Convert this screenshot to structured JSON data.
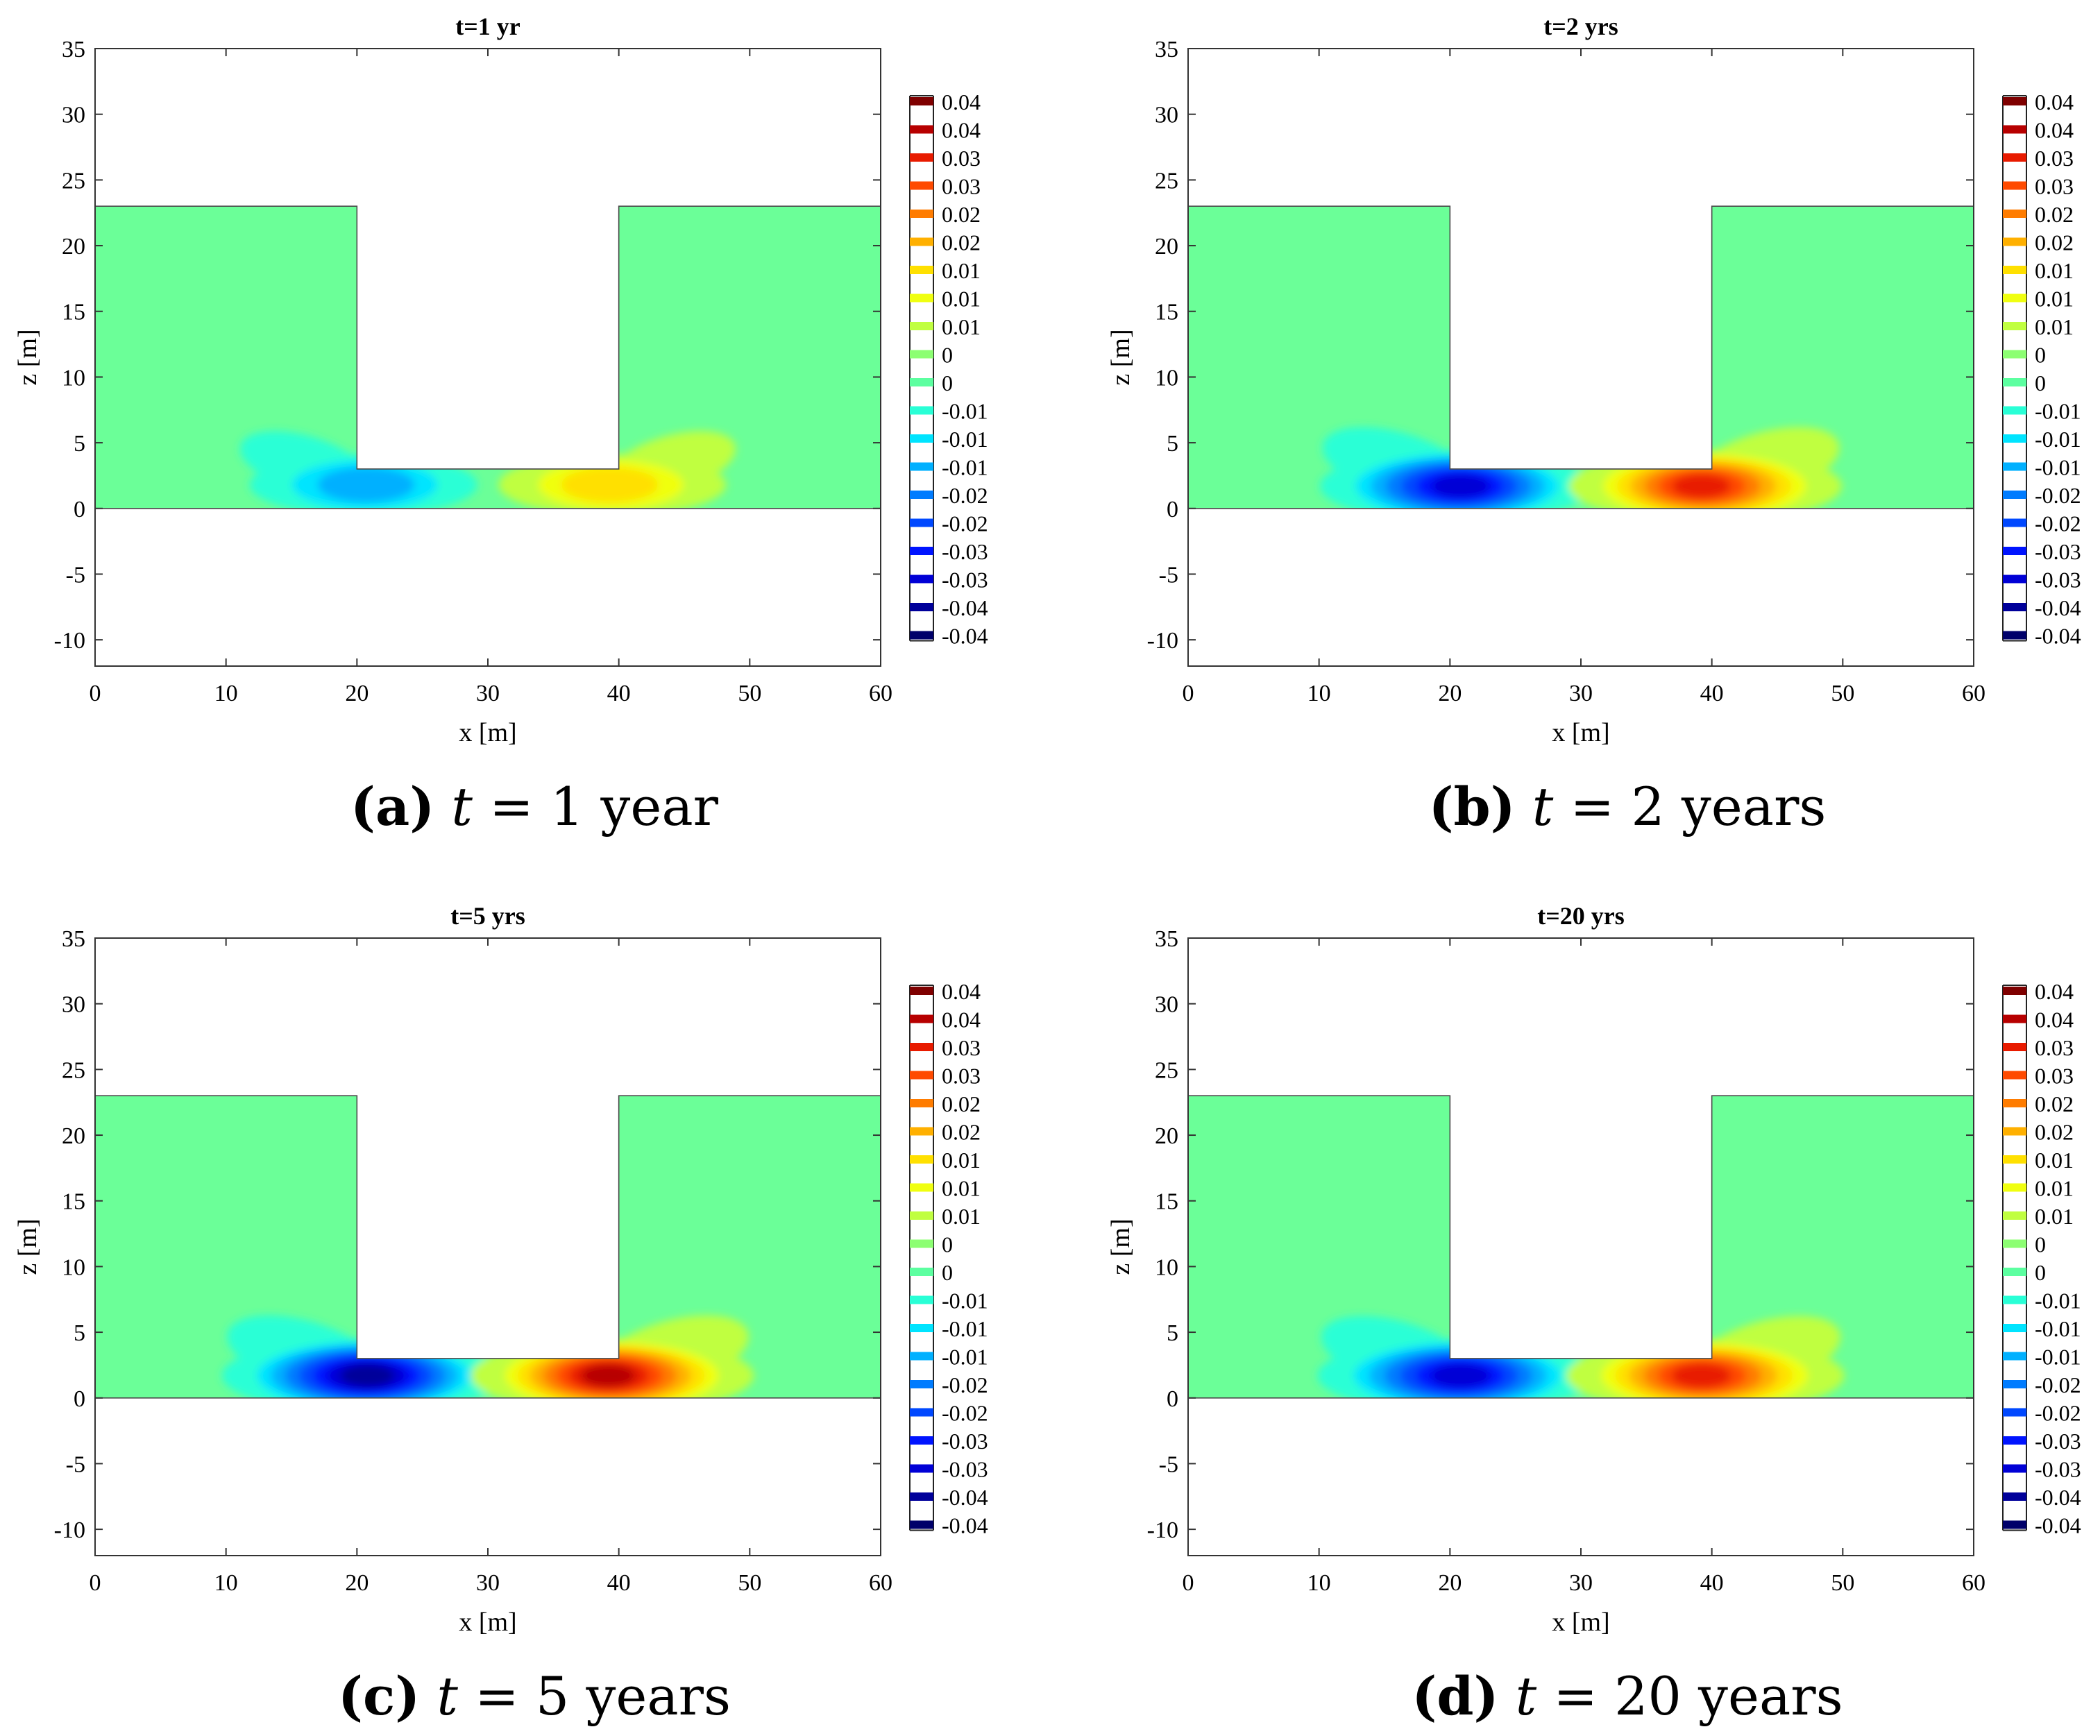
{
  "figure": {
    "colorbar": {
      "colors": [
        "#7f0000",
        "#b70000",
        "#e81b00",
        "#ff4a00",
        "#ff7c00",
        "#ffb000",
        "#ffe000",
        "#f0ff10",
        "#c0ff40",
        "#8cff72",
        "#5cffa0",
        "#29ffd6",
        "#00e4ff",
        "#00b0ff",
        "#007cff",
        "#0048ff",
        "#0014ff",
        "#0000d6",
        "#00009a",
        "#00006a"
      ],
      "labels": [
        "0.04",
        "0.04",
        "0.03",
        "0.03",
        "0.02",
        "0.02",
        "0.01",
        "0.01",
        "0.01",
        "0",
        "0",
        "-0.01",
        "-0.01",
        "-0.01",
        "-0.02",
        "-0.02",
        "-0.03",
        "-0.03",
        "-0.04",
        "-0.04"
      ]
    },
    "domain_color": "#6bff98",
    "x_label": "x [m]",
    "y_label": "z [m]",
    "x_ticks": [
      0,
      10,
      20,
      30,
      40,
      50,
      60
    ],
    "y_ticks": [
      35,
      30,
      25,
      20,
      15,
      10,
      5,
      0,
      -5,
      -10
    ]
  },
  "chart_data": [
    {
      "type": "contour",
      "title": "t=1 yr",
      "caption": {
        "letter": "(a)",
        "variable": "t",
        "value": "= 1 year"
      },
      "xlabel": "x [m]",
      "ylabel": "z [m]",
      "xlim": [
        0,
        60
      ],
      "ylim": [
        -12,
        35
      ],
      "domain": {
        "outer_x": [
          0,
          60
        ],
        "outer_z": [
          0,
          23
        ],
        "excavation_x": [
          20,
          40
        ],
        "excavation_bottom_z": 3
      },
      "extremes": [
        {
          "x": 20.5,
          "z": 1.8,
          "value": -0.02
        },
        {
          "x": 39.5,
          "z": 1.8,
          "value": 0.02
        }
      ],
      "intensity": 0.4
    },
    {
      "type": "contour",
      "title": "t=2 yrs",
      "caption": {
        "letter": "(b)",
        "variable": "t",
        "value": "= 2 years"
      },
      "xlabel": "x [m]",
      "ylabel": "z [m]",
      "xlim": [
        0,
        60
      ],
      "ylim": [
        -12,
        35
      ],
      "domain": {
        "outer_x": [
          0,
          60
        ],
        "outer_z": [
          0,
          23
        ],
        "excavation_x": [
          20,
          40
        ],
        "excavation_bottom_z": 3
      },
      "extremes": [
        {
          "x": 20.5,
          "z": 1.7,
          "value": -0.04
        },
        {
          "x": 39.5,
          "z": 1.7,
          "value": 0.04
        }
      ],
      "intensity": 0.85
    },
    {
      "type": "contour",
      "title": "t=5 yrs",
      "caption": {
        "letter": "(c)",
        "variable": "t",
        "value": "= 5 years"
      },
      "xlabel": "x [m]",
      "ylabel": "z [m]",
      "xlim": [
        0,
        60
      ],
      "ylim": [
        -12,
        35
      ],
      "domain": {
        "outer_x": [
          0,
          60
        ],
        "outer_z": [
          0,
          23
        ],
        "excavation_x": [
          20,
          40
        ],
        "excavation_bottom_z": 3
      },
      "extremes": [
        {
          "x": 20.5,
          "z": 1.7,
          "value": -0.04
        },
        {
          "x": 39.5,
          "z": 1.7,
          "value": 0.04
        }
      ],
      "intensity": 0.95
    },
    {
      "type": "contour",
      "title": "t=20 yrs",
      "caption": {
        "letter": "(d)",
        "variable": "t",
        "value": "= 20 years"
      },
      "xlabel": "x [m]",
      "ylabel": "z [m]",
      "xlim": [
        0,
        60
      ],
      "ylim": [
        -12,
        35
      ],
      "domain": {
        "outer_x": [
          0,
          60
        ],
        "outer_z": [
          0,
          23
        ],
        "excavation_x": [
          20,
          40
        ],
        "excavation_bottom_z": 3
      },
      "extremes": [
        {
          "x": 20.5,
          "z": 1.7,
          "value": -0.04
        },
        {
          "x": 39.5,
          "z": 1.7,
          "value": 0.04
        }
      ],
      "intensity": 0.9
    }
  ]
}
